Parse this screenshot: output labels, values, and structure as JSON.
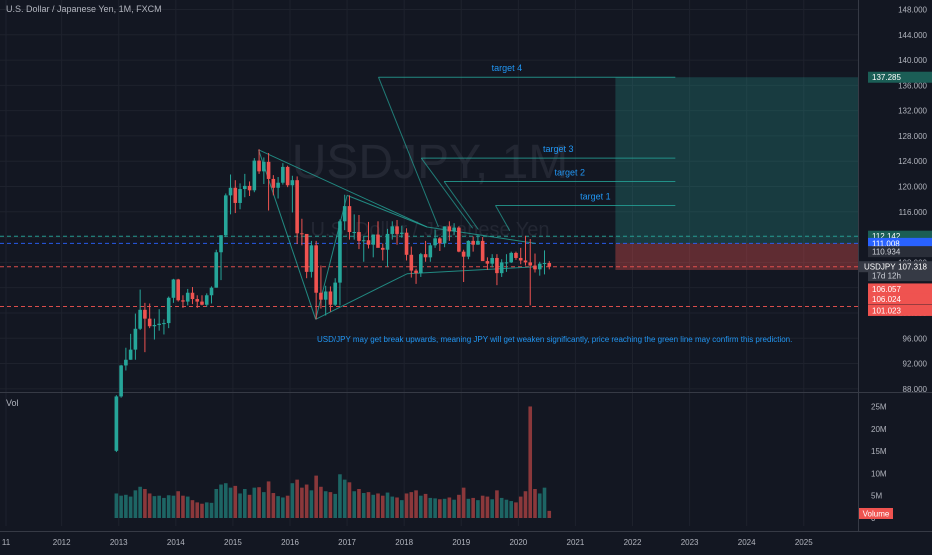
{
  "header": {
    "title": "U.S. Dollar / Japanese Yen, 1M, FXCM"
  },
  "watermark": {
    "symbol": "USDJPY, 1M",
    "name": "U.S. Dollar / Japanese Yen"
  },
  "volume_pane": {
    "label": "Vol"
  },
  "annotation": "USD/JPY may get break upwards, meaning JPY will get weaken significantly, price reaching the green line may confirm this prediction.",
  "colors": {
    "background": "#131722",
    "up": "#26a69a",
    "down": "#ef5350",
    "accent": "#2962ff",
    "text": "#b2b5be",
    "annotation": "#2196f3"
  },
  "price_axis": {
    "ticks": [
      "148.000",
      "144.000",
      "140.000",
      "136.000",
      "132.000",
      "128.000",
      "124.000",
      "120.000",
      "116.000",
      "112.000",
      "108.000",
      "104.000",
      "100.000",
      "96.000",
      "92.000",
      "88.000"
    ],
    "labels": [
      {
        "text": "137.285",
        "value": 137.285,
        "bg": "#1b5e56",
        "fg": "#ffffff"
      },
      {
        "text": "112.142",
        "value": 112.142,
        "bg": "#1b5e56",
        "fg": "#ffffff"
      },
      {
        "text": "111.008",
        "value": 111.008,
        "bg": "#2962ff",
        "fg": "#ffffff"
      },
      {
        "text": "110.934",
        "value": 109.7,
        "bg": "#2a2e39",
        "fg": "#d1d4dc"
      },
      {
        "text": "USDJPY",
        "value": 107.318,
        "bg": "#363a45",
        "fg": "#d1d4dc",
        "second": "107.318"
      },
      {
        "text": "17d 12h",
        "value": 105.9,
        "bg": "#363a45",
        "fg": "#d1d4dc"
      },
      {
        "text": "106.057",
        "value": 103.8,
        "bg": "#ef5350",
        "fg": "#ffffff"
      },
      {
        "text": "106.024",
        "value": 102.2,
        "bg": "#ef5350",
        "fg": "#ffffff"
      },
      {
        "text": "101.023",
        "value": 100.4,
        "bg": "#ef5350",
        "fg": "#ffffff"
      }
    ]
  },
  "volume_axis": {
    "ticks": [
      "25M",
      "20M",
      "15M",
      "10M",
      "5M",
      "0"
    ],
    "label": "Volume"
  },
  "time_axis": {
    "ticks": [
      "11",
      "2012",
      "2013",
      "2014",
      "2015",
      "2016",
      "2017",
      "2018",
      "2019",
      "2020",
      "2021",
      "2022",
      "2023",
      "2024",
      "2025"
    ]
  },
  "drawings": {
    "targets": [
      {
        "label": "target 4",
        "price": 137.285
      },
      {
        "label": "target 3",
        "price": 124.5
      },
      {
        "label": "target 2",
        "price": 120.8
      },
      {
        "label": "target 1",
        "price": 117.0
      }
    ],
    "long_position": {
      "entry": 111.008,
      "target": 137.285,
      "stop": 106.8
    },
    "dashed_levels": [
      {
        "price": 112.142,
        "color": "#26a69a"
      },
      {
        "price": 111.008,
        "color": "#2962ff"
      },
      {
        "price": 107.318,
        "color": "#ef5350"
      },
      {
        "price": 101.023,
        "color": "#ef5350"
      }
    ]
  },
  "chart_data": {
    "type": "candlestick",
    "title": "U.S. Dollar / Japanese Yen, 1M, FXCM",
    "ylim": [
      87.5,
      149.5
    ],
    "volume_ylim": [
      0,
      26
    ],
    "x_range": [
      "2011-01",
      "2025-12"
    ],
    "last_price": 107.318,
    "candles": [
      [
        "2012-12",
        78.2,
        87.0,
        78.0,
        86.8,
        5.5
      ],
      [
        "2013-01",
        86.8,
        91.8,
        86.6,
        91.7,
        5.0
      ],
      [
        "2013-02",
        91.7,
        94.5,
        90.9,
        92.6,
        5.2
      ],
      [
        "2013-03",
        92.6,
        96.7,
        92.6,
        94.2,
        4.8
      ],
      [
        "2013-04",
        94.2,
        99.9,
        92.6,
        97.5,
        6.2
      ],
      [
        "2013-05",
        97.5,
        103.7,
        97.3,
        100.5,
        7.0
      ],
      [
        "2013-06",
        100.5,
        101.6,
        93.8,
        99.1,
        6.5
      ],
      [
        "2013-07",
        99.1,
        101.5,
        97.6,
        97.9,
        5.5
      ],
      [
        "2013-08",
        97.9,
        99.1,
        95.8,
        98.1,
        4.9
      ],
      [
        "2013-09",
        98.1,
        100.6,
        97.2,
        98.3,
        5.0
      ],
      [
        "2013-10",
        98.3,
        99.0,
        96.6,
        98.4,
        4.5
      ],
      [
        "2013-11",
        98.4,
        102.6,
        97.6,
        102.4,
        5.1
      ],
      [
        "2013-12",
        102.4,
        105.4,
        101.6,
        105.3,
        5.0
      ],
      [
        "2014-01",
        105.3,
        105.4,
        101.8,
        102.0,
        6.0
      ],
      [
        "2014-02",
        102.0,
        102.8,
        100.8,
        101.8,
        5.0
      ],
      [
        "2014-03",
        101.8,
        103.8,
        101.2,
        103.2,
        4.8
      ],
      [
        "2014-04",
        103.2,
        104.1,
        101.4,
        102.2,
        4.0
      ],
      [
        "2014-05",
        102.2,
        102.8,
        100.8,
        101.8,
        3.5
      ],
      [
        "2014-06",
        101.8,
        102.8,
        101.2,
        101.3,
        3.2
      ],
      [
        "2014-07",
        101.3,
        103.1,
        101.0,
        102.8,
        3.5
      ],
      [
        "2014-08",
        102.8,
        104.2,
        101.5,
        104.0,
        3.4
      ],
      [
        "2014-09",
        104.0,
        110.0,
        104.0,
        109.6,
        6.5
      ],
      [
        "2014-10",
        109.6,
        112.3,
        105.2,
        112.3,
        7.5
      ],
      [
        "2014-11",
        112.3,
        118.9,
        112.0,
        118.6,
        7.8
      ],
      [
        "2014-12",
        118.6,
        121.9,
        115.6,
        119.8,
        6.8
      ],
      [
        "2015-01",
        119.8,
        121.0,
        115.8,
        117.4,
        7.2
      ],
      [
        "2015-02",
        117.4,
        120.5,
        116.4,
        119.6,
        5.5
      ],
      [
        "2015-03",
        119.6,
        122.0,
        118.3,
        120.1,
        6.5
      ],
      [
        "2015-04",
        120.1,
        120.8,
        118.5,
        119.4,
        5.2
      ],
      [
        "2015-05",
        119.4,
        124.5,
        119.1,
        124.1,
        6.8
      ],
      [
        "2015-06",
        124.1,
        125.9,
        122.0,
        122.4,
        6.9
      ],
      [
        "2015-07",
        122.4,
        124.6,
        120.4,
        123.9,
        5.8
      ],
      [
        "2015-08",
        123.9,
        125.3,
        116.2,
        121.2,
        8.2
      ],
      [
        "2015-09",
        121.2,
        121.8,
        118.6,
        119.8,
        5.6
      ],
      [
        "2015-10",
        119.8,
        121.5,
        118.1,
        120.6,
        4.9
      ],
      [
        "2015-11",
        120.6,
        123.7,
        120.3,
        123.1,
        4.6
      ],
      [
        "2015-12",
        123.1,
        123.3,
        119.9,
        120.2,
        5.0
      ],
      [
        "2016-01",
        120.2,
        121.7,
        115.9,
        121.0,
        7.8
      ],
      [
        "2016-02",
        121.0,
        121.6,
        110.9,
        112.6,
        8.6
      ],
      [
        "2016-03",
        112.6,
        114.9,
        110.7,
        112.5,
        6.8
      ],
      [
        "2016-04",
        112.5,
        112.2,
        105.5,
        106.5,
        7.5
      ],
      [
        "2016-05",
        106.5,
        111.4,
        105.6,
        110.7,
        6.2
      ],
      [
        "2016-06",
        110.7,
        111.4,
        99.0,
        103.2,
        9.5
      ],
      [
        "2016-07",
        103.2,
        107.5,
        100.7,
        102.1,
        7.0
      ],
      [
        "2016-08",
        102.1,
        104.3,
        99.6,
        103.4,
        6.0
      ],
      [
        "2016-09",
        103.4,
        104.2,
        100.2,
        101.3,
        5.8
      ],
      [
        "2016-10",
        101.3,
        105.5,
        101.1,
        104.8,
        5.4
      ],
      [
        "2016-11",
        104.8,
        114.8,
        101.2,
        114.5,
        9.8
      ],
      [
        "2016-12",
        114.5,
        118.7,
        113.1,
        116.9,
        8.6
      ],
      [
        "2017-01",
        116.9,
        118.6,
        111.6,
        112.8,
        8.0
      ],
      [
        "2017-02",
        112.8,
        115.6,
        111.6,
        112.8,
        6.0
      ],
      [
        "2017-03",
        112.8,
        115.5,
        110.1,
        111.4,
        6.5
      ],
      [
        "2017-04",
        111.4,
        112.2,
        108.1,
        111.5,
        5.6
      ],
      [
        "2017-05",
        111.5,
        114.4,
        110.2,
        110.8,
        5.8
      ],
      [
        "2017-06",
        110.8,
        112.4,
        108.8,
        112.4,
        5.2
      ],
      [
        "2017-07",
        112.4,
        114.5,
        110.6,
        110.3,
        5.5
      ],
      [
        "2017-08",
        110.3,
        111.0,
        108.3,
        110.0,
        5.0
      ],
      [
        "2017-09",
        110.0,
        113.3,
        107.3,
        112.5,
        5.7
      ],
      [
        "2017-10",
        112.5,
        114.5,
        111.6,
        113.7,
        4.8
      ],
      [
        "2017-11",
        113.7,
        114.7,
        110.8,
        112.5,
        4.6
      ],
      [
        "2017-12",
        112.5,
        113.8,
        111.9,
        112.7,
        4.0
      ],
      [
        "2018-01",
        112.7,
        113.4,
        108.3,
        109.2,
        5.5
      ],
      [
        "2018-02",
        109.2,
        110.5,
        105.6,
        106.7,
        5.8
      ],
      [
        "2018-03",
        106.7,
        107.0,
        104.6,
        106.3,
        6.2
      ],
      [
        "2018-04",
        106.3,
        109.5,
        105.7,
        109.3,
        5.0
      ],
      [
        "2018-05",
        109.3,
        111.4,
        108.1,
        108.8,
        5.4
      ],
      [
        "2018-06",
        108.8,
        111.0,
        108.1,
        110.7,
        4.5
      ],
      [
        "2018-07",
        110.7,
        113.2,
        110.3,
        111.8,
        4.4
      ],
      [
        "2018-08",
        111.8,
        112.0,
        109.8,
        111.0,
        4.2
      ],
      [
        "2018-09",
        111.0,
        113.7,
        110.4,
        113.7,
        4.3
      ],
      [
        "2018-10",
        113.7,
        114.5,
        111.4,
        112.9,
        4.6
      ],
      [
        "2018-11",
        112.9,
        114.2,
        112.3,
        113.5,
        4.1
      ],
      [
        "2018-12",
        113.5,
        113.7,
        109.6,
        109.7,
        5.2
      ],
      [
        "2019-01",
        109.7,
        110.0,
        104.9,
        108.9,
        6.8
      ],
      [
        "2019-02",
        108.9,
        111.5,
        108.5,
        111.4,
        4.3
      ],
      [
        "2019-03",
        111.4,
        112.1,
        109.7,
        110.8,
        4.5
      ],
      [
        "2019-04",
        110.8,
        112.4,
        110.8,
        111.4,
        4.0
      ],
      [
        "2019-05",
        111.4,
        112.0,
        108.3,
        108.2,
        5.0
      ],
      [
        "2019-06",
        108.2,
        108.8,
        106.8,
        107.8,
        4.8
      ],
      [
        "2019-07",
        107.8,
        109.3,
        107.2,
        108.7,
        4.2
      ],
      [
        "2019-08",
        108.7,
        109.3,
        104.4,
        106.3,
        6.2
      ],
      [
        "2019-09",
        106.3,
        108.5,
        105.7,
        108.0,
        4.5
      ],
      [
        "2019-10",
        108.0,
        109.3,
        106.5,
        108.0,
        4.1
      ],
      [
        "2019-11",
        108.0,
        109.7,
        107.9,
        109.5,
        3.8
      ],
      [
        "2019-12",
        109.5,
        109.7,
        108.4,
        108.7,
        3.5
      ],
      [
        "2020-01",
        108.7,
        110.3,
        107.7,
        108.3,
        4.8
      ],
      [
        "2020-02",
        108.3,
        112.2,
        107.5,
        108.0,
        6.0
      ],
      [
        "2020-03",
        108.0,
        111.7,
        101.2,
        107.5,
        25.0
      ],
      [
        "2020-04",
        107.5,
        109.4,
        106.4,
        106.9,
        6.5
      ],
      [
        "2020-05",
        106.9,
        108.1,
        105.9,
        107.8,
        5.5
      ],
      [
        "2020-06",
        107.8,
        109.9,
        106.1,
        107.9,
        6.8
      ],
      [
        "2020-07",
        107.9,
        108.2,
        106.9,
        107.318,
        1.6
      ]
    ]
  }
}
